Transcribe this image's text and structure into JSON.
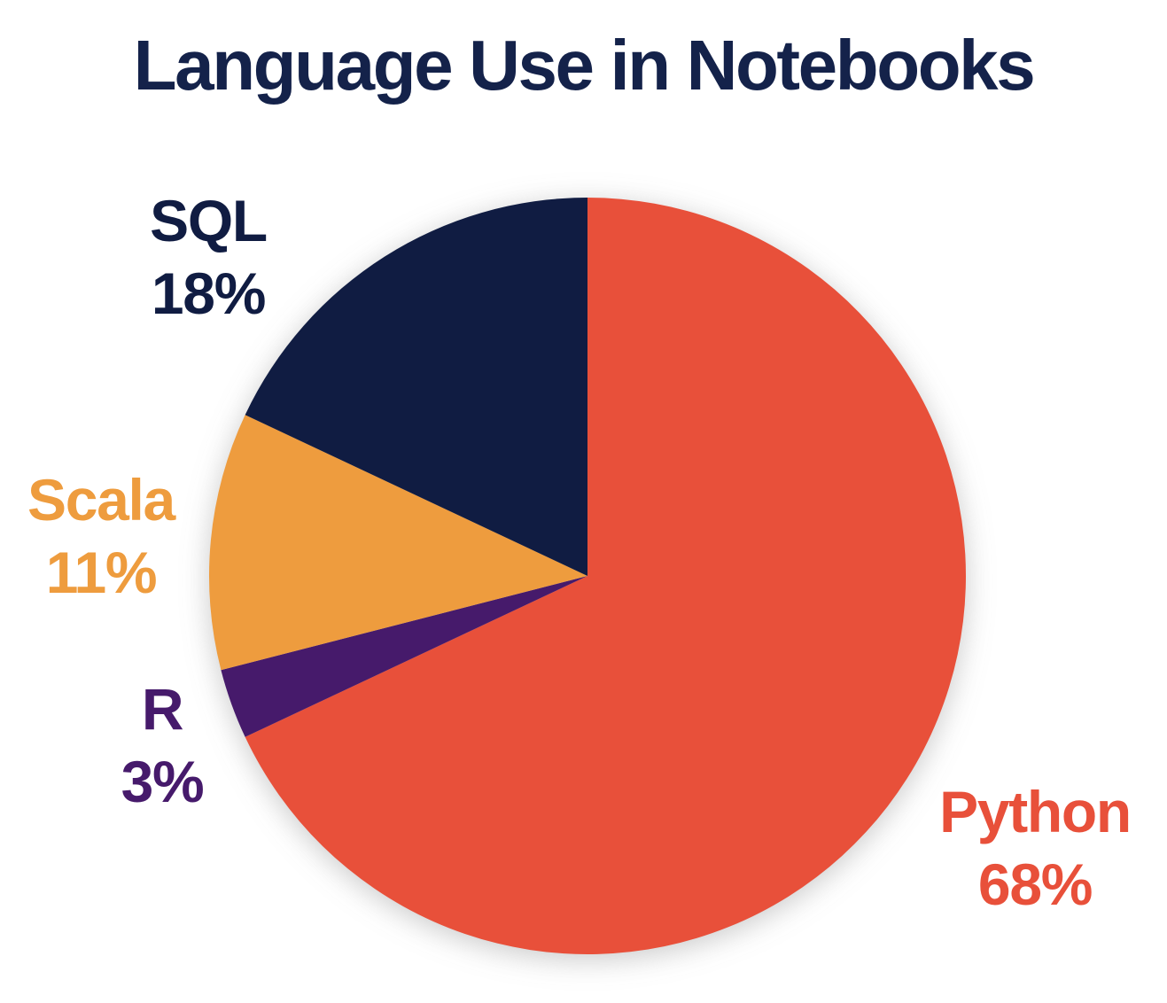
{
  "title": "Language Use in Notebooks",
  "colors": {
    "background": "#FFFFFF",
    "title_text": "#14224A"
  },
  "chart_data": {
    "type": "pie",
    "title": "Language Use in Notebooks",
    "start_angle_deg": 0,
    "direction": "clockwise",
    "legend_position": "labels-outside",
    "slices": [
      {
        "label": "Python",
        "value": 68,
        "percent_label": "68%",
        "color": "#E8503A"
      },
      {
        "label": "R",
        "value": 3,
        "percent_label": "3%",
        "color": "#461A6B"
      },
      {
        "label": "Scala",
        "value": 11,
        "percent_label": "11%",
        "color": "#EE9C3E"
      },
      {
        "label": "SQL",
        "value": 18,
        "percent_label": "18%",
        "color": "#101C42"
      }
    ]
  }
}
